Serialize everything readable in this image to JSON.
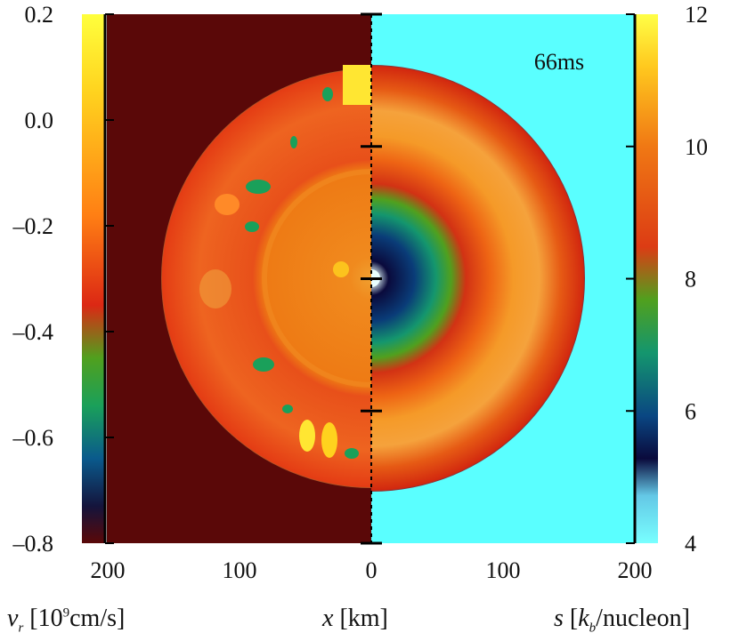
{
  "chart_data": {
    "type": "heatmap",
    "description_panels": [
      "left half: radial velocity v_r",
      "right half: entropy s"
    ],
    "annotation": "66ms",
    "x_axis": {
      "label_var": "x",
      "label_unit": "[km]",
      "ticks_left": [
        "200",
        "100",
        "0"
      ],
      "ticks_right": [
        "100",
        "200"
      ],
      "range_km": [
        -215,
        215
      ]
    },
    "left_colorbar": {
      "label_var": "v",
      "label_sub": "r",
      "label_unit_pre": "[10",
      "label_unit_sup": "9",
      "label_unit_post": "cm/s]",
      "ticks": [
        "0.2",
        "0.0",
        "–0.2",
        "–0.4",
        "–0.6",
        "–0.8"
      ],
      "tick_values": [
        0.2,
        0.0,
        -0.2,
        -0.4,
        -0.6,
        -0.8
      ],
      "range": [
        -0.8,
        0.2
      ],
      "colormap": [
        "#5a0808",
        "#14143c",
        "#0a5a8c",
        "#1aa05a",
        "#c8321e",
        "#ff7f14",
        "#ffd21e",
        "#ffff3c"
      ]
    },
    "right_colorbar": {
      "label_var": "s",
      "label_unit_pre": "[",
      "label_unit_var": "k",
      "label_unit_sub": "b",
      "label_unit_post": "/nucleon]",
      "ticks": [
        "12",
        "10",
        "8",
        "6",
        "4"
      ],
      "tick_values": [
        12,
        10,
        8,
        6,
        4
      ],
      "range": [
        4,
        12
      ],
      "colormap": [
        "#78ffff",
        "#64c8e6",
        "#0a0a3c",
        "#0a4682",
        "#14966e",
        "#50a01e",
        "#dc3c14",
        "#f07814",
        "#ffc81e",
        "#ffff46"
      ]
    },
    "panels": {
      "left_background": "#5a0808",
      "right_background": "#5affff",
      "shock_radius_km": 160,
      "inner_radius_km": 78,
      "core_radius_km": 10
    }
  }
}
